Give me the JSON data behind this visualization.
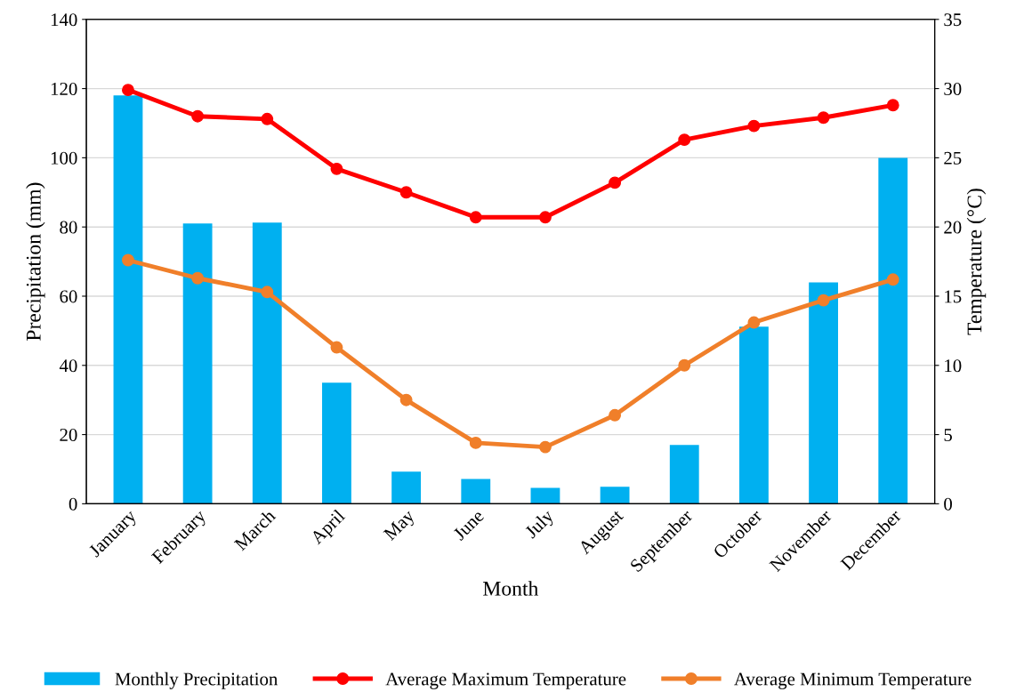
{
  "chart_data": {
    "type": "bar",
    "xlabel": "Month",
    "ylabel": "Precipitation (mm)",
    "y2label": "Temperature (°C)",
    "categories": [
      "January",
      "February",
      "March",
      "April",
      "May",
      "June",
      "July",
      "August",
      "September",
      "October",
      "November",
      "December"
    ],
    "series": [
      {
        "name": "Monthly Precipitation",
        "color": "#00b0f0",
        "values": [
          118,
          81,
          81.3,
          35,
          9.3,
          7.2,
          4.6,
          4.9,
          17,
          51.2,
          64,
          100
        ]
      },
      {
        "name": "Average Maximum Temperature",
        "type": "line",
        "axis": "y2",
        "color": "#ff0000",
        "marker": "circle",
        "values": [
          29.9,
          28.0,
          27.8,
          24.2,
          22.5,
          20.7,
          20.7,
          23.2,
          26.3,
          27.3,
          27.9,
          28.8
        ]
      },
      {
        "name": "Average Minimum Temperature",
        "type": "line",
        "axis": "y2",
        "color": "#f07f2a",
        "marker": "circle",
        "values": [
          17.6,
          16.3,
          15.3,
          11.3,
          7.5,
          4.4,
          4.1,
          6.4,
          10.0,
          13.1,
          14.7,
          16.2
        ]
      }
    ],
    "ylim": [
      0,
      140
    ],
    "yticks": [
      0,
      20,
      40,
      60,
      80,
      100,
      120,
      140
    ],
    "y2lim": [
      0,
      35
    ],
    "y2ticks": [
      0,
      5,
      10,
      15,
      20,
      25,
      30,
      35
    ],
    "grid": "y",
    "legend": "bottom"
  }
}
